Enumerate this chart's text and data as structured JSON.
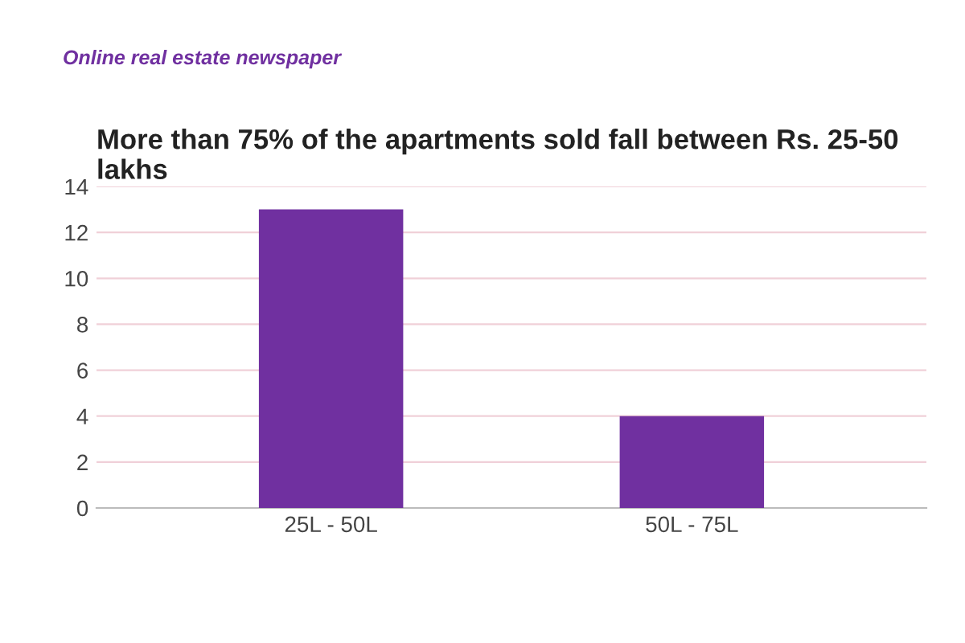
{
  "chart_data": {
    "type": "bar",
    "title": "More than 75% of the apartments sold fall between Rs. 25-50 lakhs",
    "annotations": [
      "Online real estate newspaper"
    ],
    "categories": [
      "25L - 50L",
      "50L - 75L"
    ],
    "values": [
      13,
      4
    ],
    "color": "#7030a0",
    "ylim": [
      0,
      14
    ],
    "yticks": [
      0,
      2,
      4,
      6,
      8,
      10,
      12,
      14
    ],
    "grid": "y"
  }
}
